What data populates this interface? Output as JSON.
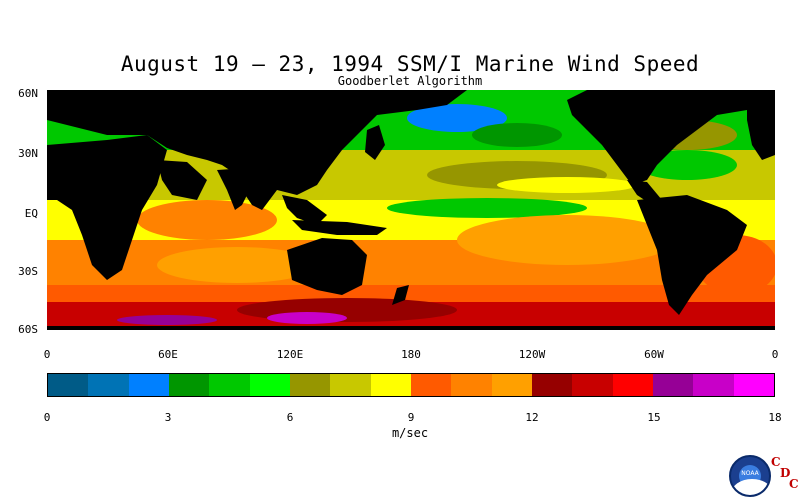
{
  "title": "August 19 – 23, 1994 SSM/I Marine Wind Speed",
  "subtitle": "Goodberlet Algorithm",
  "map": {
    "lat_labels": [
      "60N",
      "30N",
      "EQ",
      "30S",
      "60S"
    ],
    "lon_labels": [
      "0",
      "60E",
      "120E",
      "180",
      "120W",
      "60W",
      "0"
    ],
    "land_color": "#000000"
  },
  "colorbar": {
    "colors": [
      "#005b87",
      "#0073b5",
      "#0080ff",
      "#009600",
      "#00c800",
      "#00ff00",
      "#969600",
      "#c8c800",
      "#ffff00",
      "#ff5a00",
      "#ff8200",
      "#ffa000",
      "#960000",
      "#c80000",
      "#ff0000",
      "#960096",
      "#c800c8",
      "#ff00ff"
    ],
    "tick_labels": [
      "0",
      "3",
      "6",
      "9",
      "12",
      "15",
      "18"
    ],
    "units": "m/sec"
  },
  "logo": {
    "name": "noaa-logo",
    "text": "NOAA",
    "cdc_letters": [
      "C",
      "D",
      "C"
    ]
  }
}
